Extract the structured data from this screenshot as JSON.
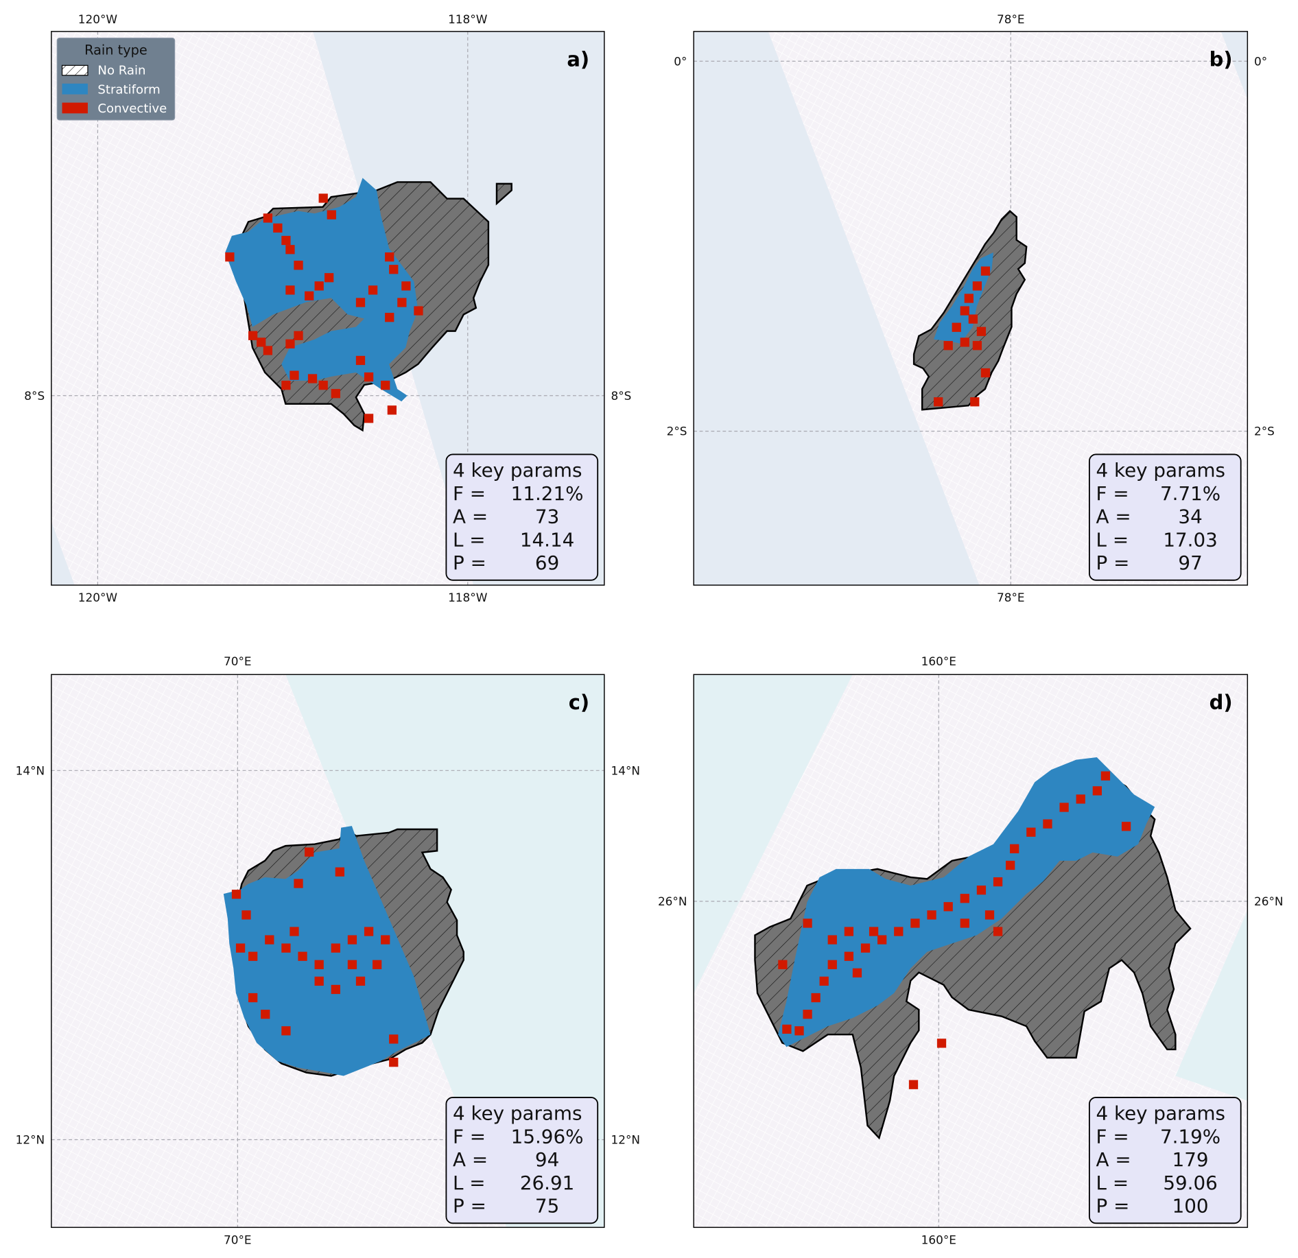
{
  "chart_data": [
    {
      "type": "map",
      "panel_label": "a)",
      "x_ticks": [
        "120°W",
        "118°W"
      ],
      "y_ticks": [
        "8°S"
      ],
      "params_title": "4 key params",
      "params": [
        {
          "key": "F =",
          "value": "11.21%"
        },
        {
          "key": "A =",
          "value": "73"
        },
        {
          "key": "L =",
          "value": "14.14"
        },
        {
          "key": "P =",
          "value": "69"
        }
      ],
      "legend": {
        "title": "Rain type",
        "placement": "top-left",
        "entries": [
          {
            "label": "No Rain",
            "color": "#ffffff",
            "pattern": "hatched"
          },
          {
            "label": "Stratiform",
            "color": "#2e86c1"
          },
          {
            "label": "Convective",
            "color": "#d11a00"
          }
        ]
      }
    },
    {
      "type": "map",
      "panel_label": "b)",
      "x_ticks": [
        "78°E"
      ],
      "y_ticks": [
        "0°",
        "2°S"
      ],
      "params_title": "4 key params",
      "params": [
        {
          "key": "F =",
          "value": "7.71%"
        },
        {
          "key": "A =",
          "value": "34"
        },
        {
          "key": "L =",
          "value": "17.03"
        },
        {
          "key": "P =",
          "value": "97"
        }
      ]
    },
    {
      "type": "map",
      "panel_label": "c)",
      "x_ticks": [
        "70°E"
      ],
      "y_ticks": [
        "14°N",
        "12°N"
      ],
      "params_title": "4 key params",
      "params": [
        {
          "key": "F =",
          "value": "15.96%"
        },
        {
          "key": "A =",
          "value": "94"
        },
        {
          "key": "L =",
          "value": "26.91"
        },
        {
          "key": "P =",
          "value": "75"
        }
      ]
    },
    {
      "type": "map",
      "panel_label": "d)",
      "x_ticks": [
        "160°E"
      ],
      "y_ticks": [
        "26°N"
      ],
      "params_title": "4 key params",
      "params": [
        {
          "key": "F =",
          "value": "7.19%"
        },
        {
          "key": "A =",
          "value": "179"
        },
        {
          "key": "L =",
          "value": "59.06"
        },
        {
          "key": "P =",
          "value": "100"
        }
      ]
    }
  ],
  "colors": {
    "stratiform": "#2e86c1",
    "convective": "#d11a00",
    "no_rain": "#747474",
    "swath": "#f5f2f7",
    "outside_swath_ab": "#e4ebf3",
    "outside_swath_cd": "#e3f1f4",
    "params_box": "#e6e6f8",
    "legend_box": "#708090"
  }
}
